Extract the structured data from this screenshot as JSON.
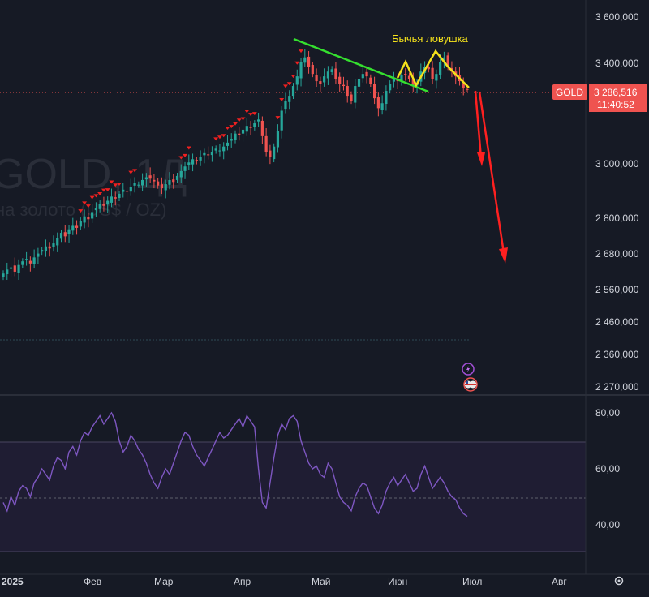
{
  "chart_data": {
    "type": "candlestick",
    "symbol": "GOLD",
    "watermark": {
      "ticker": "GOLD, 1Д",
      "description": "на золото (US$ / OZ)"
    },
    "last_price": {
      "label": "GOLD",
      "price": "3 286,516",
      "countdown": "11:40:52"
    },
    "price_axis": {
      "ticks": [
        "3 600,000",
        "3 400,000",
        "3 000,000",
        "2 800,000",
        "2 680,000",
        "2 560,000",
        "2 460,000",
        "2 360,000",
        "2 270,000"
      ],
      "ylim": [
        2270,
        3600
      ],
      "scale": "log"
    },
    "rsi_axis": {
      "ticks": [
        "80,00",
        "60,00",
        "40,00"
      ],
      "ylim": [
        30,
        85
      ],
      "band": [
        30,
        70
      ],
      "midline": 50
    },
    "time_axis": {
      "labels": [
        "2025",
        "Фев",
        "Мар",
        "Апр",
        "Май",
        "Июн",
        "Июл",
        "Авг"
      ]
    },
    "annotation": {
      "text": "Бычья ловушка",
      "color": "#f5e21b"
    },
    "colors": {
      "up": "#26a69a",
      "down": "#ef5350",
      "trendline": "#35e02f",
      "pattern": "#f5e21b",
      "arrow": "#ff2020",
      "rsi": "#7e57c2"
    },
    "series": [
      {
        "name": "GOLD",
        "type": "ohlc",
        "close": [
          2612,
          2625,
          2632,
          2618,
          2640,
          2652,
          2660,
          2645,
          2665,
          2678,
          2690,
          2702,
          2695,
          2712,
          2730,
          2748,
          2736,
          2760,
          2772,
          2765,
          2790,
          2805,
          2795,
          2820,
          2835,
          2850,
          2842,
          2860,
          2875,
          2868,
          2885,
          2900,
          2893,
          2910,
          2925,
          2918,
          2935,
          2945,
          2940,
          2930,
          2915,
          2905,
          2920,
          2935,
          2928,
          2950,
          2968,
          2985,
          3000,
          3012,
          3005,
          3020,
          3035,
          3028,
          3040,
          3052,
          3045,
          3060,
          3075,
          3090,
          3110,
          3105,
          3125,
          3140,
          3132,
          3150,
          3165,
          3100,
          3040,
          3020,
          3060,
          3120,
          3200,
          3240,
          3260,
          3300,
          3340,
          3400,
          3420,
          3380,
          3350,
          3320,
          3310,
          3340,
          3360,
          3370,
          3330,
          3310,
          3300,
          3260,
          3240,
          3300,
          3330,
          3350,
          3340,
          3310,
          3250,
          3210,
          3230,
          3280,
          3310,
          3330,
          3320,
          3345,
          3350,
          3330,
          3300,
          3310,
          3360,
          3380,
          3370,
          3330,
          3350,
          3400,
          3420,
          3380,
          3360,
          3340,
          3320,
          3290,
          3286.516
        ],
        "rsi": [
          48,
          45,
          50,
          47,
          52,
          54,
          53,
          50,
          55,
          57,
          60,
          58,
          56,
          61,
          64,
          63,
          60,
          66,
          68,
          65,
          70,
          73,
          72,
          75,
          77,
          79,
          76,
          78,
          80,
          77,
          70,
          66,
          68,
          72,
          70,
          67,
          65,
          62,
          58,
          55,
          53,
          57,
          60,
          58,
          62,
          66,
          70,
          73,
          72,
          68,
          65,
          63,
          61,
          64,
          67,
          70,
          73,
          71,
          72,
          74,
          76,
          78,
          75,
          79,
          77,
          75,
          60,
          48,
          46,
          55,
          64,
          72,
          76,
          74,
          78,
          79,
          77,
          70,
          66,
          62,
          60,
          61,
          58,
          57,
          62,
          60,
          55,
          50,
          48,
          47,
          45,
          50,
          53,
          55,
          54,
          50,
          46,
          44,
          47,
          52,
          55,
          57,
          54,
          56,
          58,
          55,
          52,
          53,
          58,
          61,
          57,
          53,
          55,
          57,
          55,
          52,
          50,
          49,
          46,
          44,
          43
        ]
      },
      {
        "name": "RSI",
        "values": [
          48,
          45,
          50,
          47,
          52,
          54,
          53,
          50,
          55,
          57,
          60,
          58,
          56,
          61,
          64,
          63,
          60,
          66,
          68,
          65,
          70,
          73,
          72,
          75,
          77,
          79,
          76,
          78,
          80,
          77,
          70,
          66,
          68,
          72,
          70,
          67,
          65,
          62,
          58,
          55,
          53,
          57,
          60,
          58,
          62,
          66,
          70,
          73,
          72,
          68,
          65,
          63,
          61,
          64,
          67,
          70,
          73,
          71,
          72,
          74,
          76,
          78,
          75,
          79,
          77,
          75,
          60,
          48,
          46,
          55,
          64,
          72,
          76,
          74,
          78,
          79,
          77,
          70,
          66,
          62,
          60,
          61,
          58,
          57,
          62,
          60,
          55,
          50,
          48,
          47,
          45,
          50,
          53,
          55,
          54,
          50,
          46,
          44,
          47,
          52,
          55,
          57,
          54,
          56,
          58,
          55,
          52,
          53,
          58,
          61,
          57,
          53,
          55,
          57,
          55,
          52,
          50,
          49,
          46,
          44,
          43
        ]
      }
    ]
  }
}
